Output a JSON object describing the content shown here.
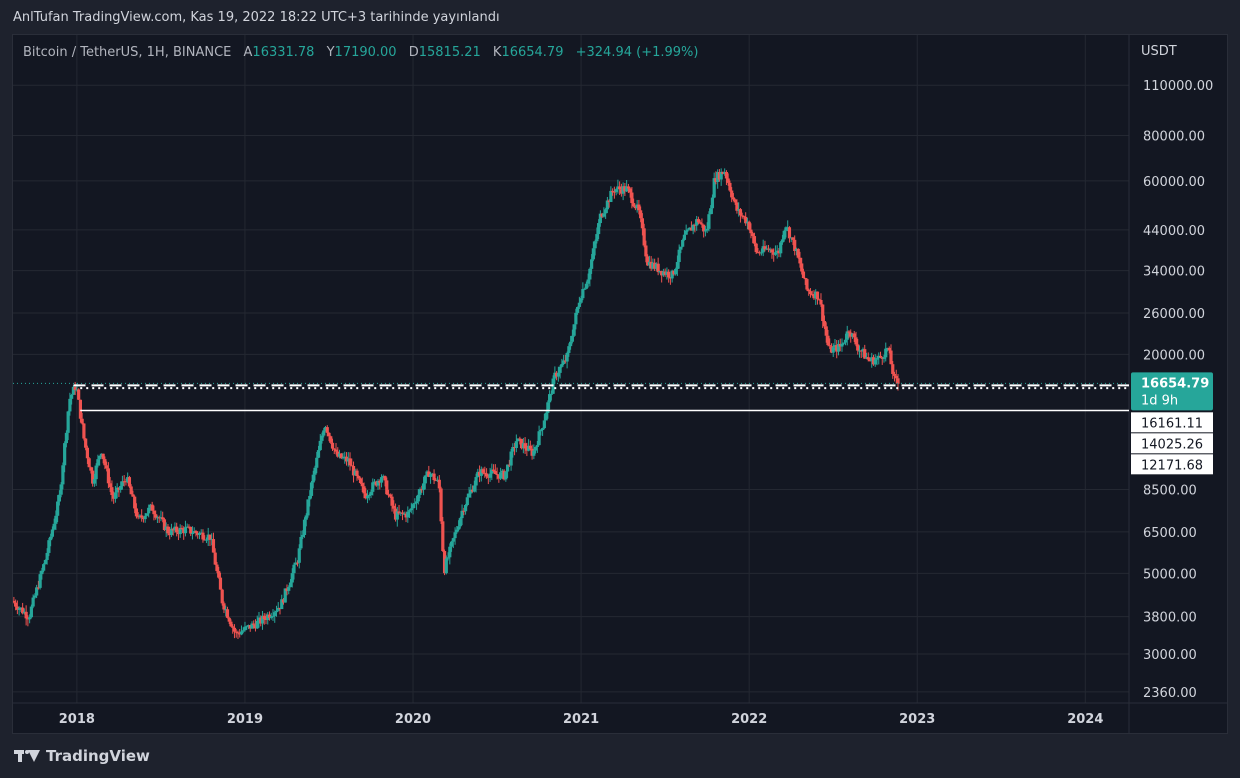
{
  "caption": "AnlTufan TradingView.com, Kas 19, 2022 18:22 UTC+3 tarihinde yayınlandı",
  "legend": {
    "symbol": "Bitcoin / TetherUS, 1H, BINANCE",
    "open_label": "A",
    "open": "16331.78",
    "high_label": "Y",
    "high": "17190.00",
    "low_label": "D",
    "low": "15815.21",
    "close_label": "K",
    "close": "16654.79",
    "change": "+324.94 (+1.99%)"
  },
  "footer": {
    "brand": "TradingView"
  },
  "chart_data": {
    "type": "candlestick",
    "currency": "USDT",
    "y_scale": "log",
    "ylim": [
      2200,
      125000
    ],
    "xlim": [
      2017.62,
      2024.26
    ],
    "y_ticks": [
      110000,
      80000,
      60000,
      44000,
      34000,
      26000,
      20000,
      8500,
      6500,
      5000,
      3800,
      3000,
      2360
    ],
    "y_tick_labels": [
      "110000.00",
      "80000.00",
      "60000.00",
      "44000.00",
      "34000.00",
      "26000.00",
      "20000.00",
      "8500.00",
      "6500.00",
      "5000.00",
      "3800.00",
      "3000.00",
      "2360.00"
    ],
    "x_ticks": [
      2018,
      2019,
      2020,
      2021,
      2022,
      2023,
      2024
    ],
    "x_tick_labels": [
      "2018",
      "2019",
      "2020",
      "2021",
      "2022",
      "2023",
      "2024"
    ],
    "price_key_points": [
      [
        2017.62,
        4200
      ],
      [
        2017.72,
        3800
      ],
      [
        2017.82,
        5500
      ],
      [
        2017.9,
        8000
      ],
      [
        2017.96,
        15000
      ],
      [
        2018.0,
        16500
      ],
      [
        2018.05,
        11500
      ],
      [
        2018.1,
        9000
      ],
      [
        2018.15,
        11000
      ],
      [
        2018.22,
        8000
      ],
      [
        2018.3,
        9200
      ],
      [
        2018.37,
        7000
      ],
      [
        2018.45,
        7600
      ],
      [
        2018.55,
        6500
      ],
      [
        2018.65,
        6600
      ],
      [
        2018.8,
        6300
      ],
      [
        2018.87,
        4200
      ],
      [
        2018.95,
        3400
      ],
      [
        2019.1,
        3700
      ],
      [
        2019.22,
        4100
      ],
      [
        2019.32,
        5500
      ],
      [
        2019.4,
        8700
      ],
      [
        2019.48,
        13000
      ],
      [
        2019.55,
        10500
      ],
      [
        2019.62,
        10200
      ],
      [
        2019.72,
        8200
      ],
      [
        2019.82,
        9300
      ],
      [
        2019.9,
        7200
      ],
      [
        2019.98,
        7300
      ],
      [
        2020.1,
        9500
      ],
      [
        2020.16,
        8800
      ],
      [
        2020.19,
        5100
      ],
      [
        2020.3,
        7500
      ],
      [
        2020.4,
        9500
      ],
      [
        2020.55,
        9300
      ],
      [
        2020.62,
        11600
      ],
      [
        2020.72,
        10700
      ],
      [
        2020.78,
        13000
      ],
      [
        2020.85,
        17500
      ],
      [
        2020.92,
        19500
      ],
      [
        2021.0,
        29000
      ],
      [
        2021.05,
        33000
      ],
      [
        2021.12,
        48000
      ],
      [
        2021.2,
        57000
      ],
      [
        2021.28,
        57000
      ],
      [
        2021.35,
        49000
      ],
      [
        2021.4,
        36000
      ],
      [
        2021.48,
        34000
      ],
      [
        2021.55,
        33000
      ],
      [
        2021.62,
        42000
      ],
      [
        2021.7,
        47000
      ],
      [
        2021.75,
        43000
      ],
      [
        2021.8,
        61000
      ],
      [
        2021.86,
        64000
      ],
      [
        2021.93,
        50000
      ],
      [
        2022.0,
        46000
      ],
      [
        2022.05,
        38000
      ],
      [
        2022.12,
        39000
      ],
      [
        2022.18,
        38000
      ],
      [
        2022.22,
        46000
      ],
      [
        2022.28,
        39000
      ],
      [
        2022.35,
        30000
      ],
      [
        2022.42,
        29000
      ],
      [
        2022.48,
        20500
      ],
      [
        2022.55,
        21000
      ],
      [
        2022.6,
        23500
      ],
      [
        2022.65,
        21000
      ],
      [
        2022.72,
        19200
      ],
      [
        2022.78,
        19500
      ],
      [
        2022.83,
        20800
      ],
      [
        2022.87,
        17000
      ],
      [
        2022.89,
        16655
      ]
    ],
    "horizontal_levels": [
      {
        "value": 16654.79,
        "style": "dashed",
        "label": "16654.79",
        "sublabel": "1d 9h"
      },
      {
        "value": 16161.11,
        "style": "dotted",
        "label": "16161.11"
      },
      {
        "value": 14025.26,
        "style": "solid",
        "label": "14025.26"
      },
      {
        "value": 12171.68,
        "style": "none",
        "label": "12171.68"
      }
    ],
    "grid": true,
    "colors": {
      "up": "#26a69a",
      "down": "#ef5350",
      "grid": "#242832",
      "text": "#d1d4dc",
      "label_bg": "#ffffff",
      "last_bg": "#26a69a"
    }
  }
}
